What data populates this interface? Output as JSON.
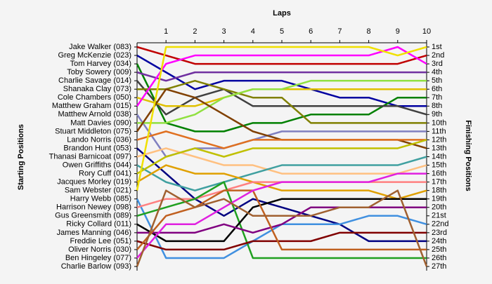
{
  "chart_data": {
    "type": "lap",
    "title": "Laps",
    "y_label": "Starting Positions",
    "y2_label": "Finishing Positions",
    "x": [
      0,
      1,
      2,
      3,
      4,
      5,
      6,
      7,
      8,
      9,
      10
    ],
    "xlim": [
      0,
      10
    ],
    "xticks": [
      1,
      2,
      3,
      4,
      5,
      6,
      7,
      8,
      9,
      10
    ],
    "ylim": [
      27,
      1
    ],
    "y2lim": [
      27,
      1
    ],
    "y2ticks": [
      {
        "value": 1,
        "label": "1st"
      },
      {
        "value": 2,
        "label": "2nd"
      },
      {
        "value": 3,
        "label": "3rd"
      },
      {
        "value": 4,
        "label": "4th"
      },
      {
        "value": 5,
        "label": "5th"
      },
      {
        "value": 6,
        "label": "6th"
      },
      {
        "value": 7,
        "label": "7th"
      },
      {
        "value": 8,
        "label": "8th"
      },
      {
        "value": 9,
        "label": "9th"
      },
      {
        "value": 10,
        "label": "10th"
      },
      {
        "value": 11,
        "label": "11th"
      },
      {
        "value": 12,
        "label": "12th"
      },
      {
        "value": 13,
        "label": "13th"
      },
      {
        "value": 14,
        "label": "14th"
      },
      {
        "value": 15,
        "label": "15th"
      },
      {
        "value": 16,
        "label": "16th"
      },
      {
        "value": 17,
        "label": "17th"
      },
      {
        "value": 18,
        "label": "18th"
      },
      {
        "value": 19,
        "label": "19th"
      },
      {
        "value": 20,
        "label": "20th"
      },
      {
        "value": 21,
        "label": "21st"
      },
      {
        "value": 22,
        "label": "22nd"
      },
      {
        "value": 23,
        "label": "23rd"
      },
      {
        "value": 24,
        "label": "24th"
      },
      {
        "value": 25,
        "label": "25th"
      },
      {
        "value": 26,
        "label": "26th"
      },
      {
        "value": 27,
        "label": "27th"
      }
    ],
    "series": [
      {
        "name": "Jake Walker (083)",
        "color": "#c00000",
        "values": [
          1,
          2,
          3,
          3,
          3,
          3,
          3,
          3,
          3,
          3,
          2
        ]
      },
      {
        "name": "Greg McKenzie (023)",
        "color": "#0000a0",
        "values": [
          2,
          4,
          6,
          5,
          5,
          5,
          6,
          7,
          7,
          8,
          8
        ]
      },
      {
        "name": "Tom Harvey (034)",
        "color": "#008000",
        "values": [
          3,
          10,
          11,
          11,
          10,
          10,
          9,
          9,
          9,
          7,
          7
        ]
      },
      {
        "name": "Toby Sowery (009)",
        "color": "#7030a0",
        "values": [
          4,
          5,
          4,
          4,
          4,
          4,
          4,
          4,
          4,
          4,
          4
        ]
      },
      {
        "name": "Charlie Savage (014)",
        "color": "#404040",
        "values": [
          5,
          9,
          7,
          6,
          8,
          8,
          8,
          8,
          8,
          8,
          9
        ]
      },
      {
        "name": "Shanaka Clay (073)",
        "color": "#808000",
        "values": [
          6,
          6,
          5,
          6,
          7,
          7,
          10,
          10,
          10,
          10,
          10
        ]
      },
      {
        "name": "Cole Chambers (050)",
        "color": "#e0c000",
        "values": [
          7,
          8,
          8,
          7,
          6,
          6,
          6,
          6,
          6,
          6,
          6
        ]
      },
      {
        "name": "Matthew Graham (015)",
        "color": "#ff00ff",
        "values": [
          8,
          3,
          2,
          2,
          2,
          2,
          2,
          2,
          2,
          1,
          3
        ]
      },
      {
        "name": "Matthew Arnold (038)",
        "color": "#8080c0",
        "values": [
          9,
          14,
          13,
          13,
          12,
          11,
          11,
          11,
          11,
          11,
          11
        ]
      },
      {
        "name": "Matt Davies (090)",
        "color": "#90e040",
        "values": [
          10,
          10,
          9,
          7,
          6,
          6,
          5,
          5,
          5,
          5,
          5
        ]
      },
      {
        "name": "Stuart Middleton (075)",
        "color": "#804000",
        "values": [
          11,
          6,
          7,
          9,
          11,
          12,
          12,
          12,
          12,
          12,
          13
        ]
      },
      {
        "name": "Lando Norris (036)",
        "color": "#e07020",
        "values": [
          12,
          11,
          12,
          13,
          12,
          12,
          12,
          12,
          12,
          12,
          12
        ]
      },
      {
        "name": "Brandon Hunt (053)",
        "color": "#000080",
        "values": [
          13,
          16,
          19,
          21,
          19,
          20,
          21,
          22,
          24,
          24,
          24
        ]
      },
      {
        "name": "Thanasi Barnicoat (097)",
        "color": "#ffc080",
        "values": [
          14,
          13,
          14,
          15,
          15,
          16,
          16,
          16,
          16,
          16,
          15
        ]
      },
      {
        "name": "Owen Griffiths (044)",
        "color": "#40a0a0",
        "values": [
          15,
          17,
          18,
          17,
          16,
          15,
          15,
          15,
          15,
          15,
          14
        ]
      },
      {
        "name": "Rory Cuff (041)",
        "color": "#c0c000",
        "values": [
          16,
          14,
          13,
          14,
          13,
          13,
          13,
          13,
          13,
          13,
          12
        ]
      },
      {
        "name": "Jacques Morley (019)",
        "color": "#e0a000",
        "values": [
          17,
          15,
          16,
          16,
          17,
          18,
          18,
          18,
          18,
          19,
          18
        ]
      },
      {
        "name": "Sam Webster (021)",
        "color": "#f0e000",
        "values": [
          18,
          1,
          1,
          1,
          1,
          1,
          1,
          1,
          1,
          2,
          1
        ]
      },
      {
        "name": "Harry Webb (085)",
        "color": "#4090e0",
        "values": [
          19,
          26,
          26,
          26,
          24,
          22,
          22,
          22,
          21,
          21,
          22
        ]
      },
      {
        "name": "Harrison Newey (098)",
        "color": "#ff8080",
        "values": [
          20,
          19,
          19,
          18,
          17,
          17,
          17,
          17,
          17,
          17,
          17
        ]
      },
      {
        "name": "Gus Greensmith (089)",
        "color": "#20a020",
        "values": [
          21,
          20,
          19,
          17,
          26,
          26,
          26,
          26,
          26,
          26,
          26
        ]
      },
      {
        "name": "Ricky Collard (011)",
        "color": "#000000",
        "values": [
          22,
          24,
          24,
          24,
          20,
          19,
          19,
          19,
          19,
          19,
          19
        ]
      },
      {
        "name": "James Manning (046)",
        "color": "#800080",
        "values": [
          23,
          23,
          23,
          22,
          23,
          22,
          20,
          20,
          20,
          20,
          20
        ]
      },
      {
        "name": "Freddie Lee (051)",
        "color": "#800000",
        "values": [
          24,
          25,
          25,
          25,
          24,
          24,
          24,
          23,
          23,
          23,
          23
        ]
      },
      {
        "name": "Oliver Norris (030)",
        "color": "#c06020",
        "values": [
          25,
          21,
          20,
          18,
          18,
          25,
          25,
          25,
          25,
          25,
          25
        ]
      },
      {
        "name": "Ben Hingeley (077)",
        "color": "#e020e0",
        "values": [
          26,
          22,
          22,
          20,
          18,
          17,
          17,
          17,
          17,
          16,
          16
        ]
      },
      {
        "name": "Charlie Barlow (093)",
        "color": "#a06030",
        "values": [
          27,
          18,
          20,
          19,
          21,
          21,
          21,
          20,
          20,
          18,
          27
        ]
      }
    ]
  }
}
